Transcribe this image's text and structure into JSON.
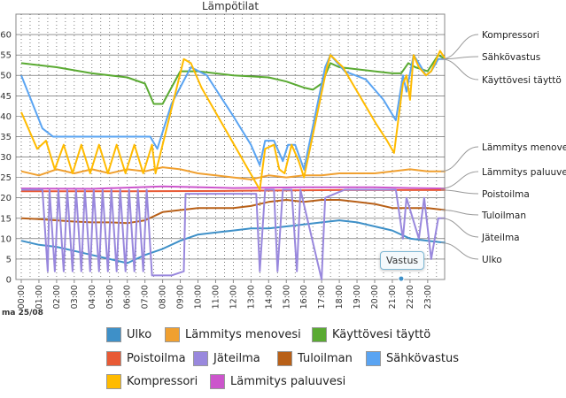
{
  "chart_data": {
    "type": "line",
    "title": "Lämpötilat",
    "date_label": "ma 25/08",
    "ylim": [
      0,
      65
    ],
    "yticks": [
      0,
      5,
      10,
      15,
      20,
      25,
      30,
      35,
      40,
      45,
      50,
      55,
      60
    ],
    "xlim": [
      0,
      24.5
    ],
    "xticks": [
      "00:00",
      "01:00",
      "02:00",
      "03:00",
      "04:00",
      "05:00",
      "06:00",
      "07:00",
      "08:00",
      "09:00",
      "10:00",
      "11:00",
      "12:00",
      "13:00",
      "14:00",
      "15:00",
      "16:00",
      "17:00",
      "18:00",
      "19:00",
      "20:00",
      "21:00",
      "22:00",
      "23:00"
    ],
    "tooltip": "Vastus",
    "series": [
      {
        "name": "Kompressori",
        "color": "#ffbb00",
        "right_label": "Kompressori",
        "x": [
          0,
          0.9,
          1.4,
          1.9,
          2.4,
          2.9,
          3.4,
          3.9,
          4.4,
          4.9,
          5.4,
          5.9,
          6.4,
          6.9,
          7.4,
          7.6,
          9.2,
          9.6,
          10.2,
          13.5,
          13.8,
          14.3,
          14.6,
          14.9,
          15.3,
          15.7,
          16.0,
          17.3,
          17.5,
          18.2,
          20.1,
          20.7,
          21.1,
          21.6,
          21.8,
          22.0,
          22.2,
          22.5,
          22.9,
          23.2,
          23.7,
          24.0
        ],
        "y": [
          41,
          32,
          34,
          27,
          33,
          26,
          33,
          26,
          33,
          26,
          33,
          26,
          33,
          26,
          33,
          26,
          54,
          53,
          47,
          22,
          32,
          33,
          27,
          26,
          33,
          29,
          25,
          52,
          55,
          52,
          38,
          34,
          31,
          48,
          50,
          44,
          55,
          52,
          50,
          51,
          56,
          54
        ]
      },
      {
        "name": "Sähkövastus",
        "color": "#5aa4f2",
        "right_label": "Sähkövastus",
        "x": [
          0,
          1.2,
          1.8,
          2.3,
          2.8,
          3.3,
          3.8,
          4.3,
          4.8,
          5.3,
          5.8,
          6.3,
          6.8,
          7.3,
          7.7,
          8.5,
          9.6,
          10.5,
          12.0,
          13.0,
          13.5,
          13.8,
          14.3,
          14.8,
          15.1,
          15.5,
          16.0,
          17.2,
          17.5,
          18.3,
          19.5,
          20.5,
          21.2,
          21.6,
          21.8,
          22.2,
          22.5,
          22.9,
          23.2,
          23.6,
          24.0
        ],
        "y": [
          50,
          37,
          35,
          35,
          35,
          35,
          35,
          35,
          35,
          35,
          35,
          35,
          35,
          35,
          32,
          43,
          52,
          50,
          40,
          33,
          28,
          34,
          34,
          29,
          33,
          33,
          27,
          52,
          55,
          51,
          49,
          44,
          39,
          50,
          46,
          55,
          53,
          50,
          51,
          54,
          54
        ]
      },
      {
        "name": "Käyttövesi täyttö",
        "color": "#5aaa32",
        "right_label": "Käyttövesi täyttö",
        "x": [
          0,
          2,
          4,
          6,
          7,
          7.5,
          8,
          9,
          10,
          12,
          14,
          15,
          16,
          16.5,
          17,
          17.5,
          18,
          20,
          21,
          21.5,
          21.9,
          22.3,
          23,
          23.6,
          24
        ],
        "y": [
          53,
          52,
          50.5,
          49.5,
          48,
          43,
          43,
          51,
          51,
          50,
          49.5,
          48.5,
          47,
          46.5,
          48,
          53,
          52,
          51,
          50.5,
          50.5,
          53,
          52,
          51,
          55,
          54
        ]
      },
      {
        "name": "Lämmitys menovesi",
        "color": "#f0a030",
        "right_label": "Lämmitys menovesi",
        "x": [
          0,
          1,
          2,
          3,
          4,
          5,
          6,
          7,
          8,
          9,
          10,
          11,
          12,
          13,
          14,
          15,
          16,
          17,
          18,
          19,
          20,
          21,
          22,
          23,
          24
        ],
        "y": [
          26.5,
          25.5,
          27,
          26,
          27,
          26,
          27,
          26.5,
          27.5,
          27,
          26,
          25.5,
          25,
          24.5,
          25.5,
          25,
          25.5,
          25.5,
          26,
          26,
          26,
          26.5,
          27,
          26.5,
          26.5
        ]
      },
      {
        "name": "Lämmitys paluuvesi",
        "color": "#cc55cc",
        "right_label": "Lämmitys paluuvesi",
        "x": [
          0,
          4,
          8,
          12,
          16,
          20,
          22,
          24
        ],
        "y": [
          22.3,
          22.2,
          22.8,
          22.4,
          22.6,
          22.6,
          22.4,
          22.3
        ]
      },
      {
        "name": "Poistoilma",
        "color": "#e85a35",
        "right_label": "Poistoilma",
        "x": [
          0,
          6,
          12,
          18,
          24
        ],
        "y": [
          21.6,
          21.6,
          21.7,
          21.9,
          21.9
        ]
      },
      {
        "name": "Tuloilman",
        "color": "#b86018",
        "right_label": "Tuloilman",
        "x": [
          0,
          1,
          2,
          3,
          4,
          5,
          6,
          7,
          8,
          9,
          10,
          11,
          12,
          13,
          14,
          15,
          16,
          17,
          18,
          19,
          20,
          21,
          22,
          23,
          24
        ],
        "y": [
          15,
          14.8,
          14.5,
          14.2,
          14,
          14,
          13.8,
          14.5,
          16.5,
          17,
          17.5,
          17.5,
          17.5,
          18,
          19,
          19.5,
          19,
          19.5,
          19.5,
          19,
          18.5,
          17.5,
          17.5,
          17.5,
          17
        ]
      },
      {
        "name": "Jäteilma",
        "color": "#9988dd",
        "right_label": "Jäteilma",
        "x": [
          0,
          1.2,
          1.5,
          1.6,
          1.9,
          2.1,
          2.4,
          2.6,
          2.9,
          3.1,
          3.4,
          3.6,
          3.9,
          4.1,
          4.4,
          4.6,
          4.9,
          5.1,
          5.4,
          5.6,
          5.9,
          6.1,
          6.4,
          6.6,
          6.9,
          7.1,
          7.4,
          7.6,
          8.5,
          9.2,
          9.3,
          13.3,
          13.5,
          13.8,
          14.3,
          14.5,
          14.8,
          15.3,
          15.6,
          15.8,
          17.0,
          17.2,
          18.3,
          21.2,
          21.6,
          21.8,
          22.5,
          22.8,
          23.2,
          23.6,
          24.0
        ],
        "y": [
          22,
          22,
          2,
          22,
          2,
          22,
          2,
          22,
          2,
          22,
          2,
          22,
          2,
          22,
          2,
          22,
          2,
          22,
          2,
          22,
          2,
          22,
          2,
          22,
          2,
          22,
          1,
          1,
          1,
          2,
          21,
          21,
          2,
          22,
          22,
          2,
          22,
          22,
          2,
          22,
          0,
          20,
          22,
          22,
          10,
          20,
          10,
          20,
          5,
          15,
          15
        ]
      },
      {
        "name": "Ulko",
        "color": "#3e90c8",
        "right_label": "Ulko",
        "x": [
          0,
          1,
          2,
          3,
          4,
          5,
          6,
          6.5,
          7,
          8,
          9,
          10,
          11,
          12,
          13,
          14,
          15,
          16,
          17,
          18,
          19,
          20,
          21,
          22,
          23,
          24
        ],
        "y": [
          9.5,
          8.5,
          8,
          7,
          6,
          5,
          4,
          5,
          6,
          7.5,
          9.5,
          11,
          11.5,
          12,
          12.5,
          12.5,
          13,
          13.5,
          14,
          14.5,
          14,
          13,
          12,
          10,
          9.5,
          9
        ]
      }
    ],
    "legend": [
      {
        "label": "Ulko",
        "color": "#3e90c8"
      },
      {
        "label": "Lämmitys menovesi",
        "color": "#f0a030"
      },
      {
        "label": "Käyttövesi täyttö",
        "color": "#5aaa32"
      },
      {
        "label": "Poistoilma",
        "color": "#e85a35"
      },
      {
        "label": "Jäteilma",
        "color": "#9988dd"
      },
      {
        "label": "Tuloilman",
        "color": "#b86018"
      },
      {
        "label": "Sähkövastus",
        "color": "#5aa4f2"
      },
      {
        "label": "Kompressori",
        "color": "#ffbb00"
      },
      {
        "label": "Lämmitys paluuvesi",
        "color": "#cc55cc"
      }
    ]
  }
}
